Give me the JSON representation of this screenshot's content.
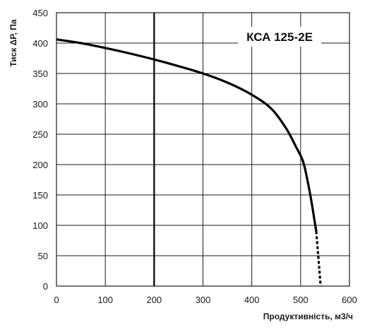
{
  "chart_data": {
    "type": "line",
    "model_label": "КСА 125-2Е",
    "xlabel": "Продуктивність, м3/ч",
    "ylabel": "Тиск ΔР, Па",
    "xlim": [
      0,
      600
    ],
    "ylim": [
      0,
      450
    ],
    "xticks": [
      0,
      100,
      200,
      300,
      400,
      500,
      600
    ],
    "yticks": [
      0,
      50,
      100,
      150,
      200,
      250,
      300,
      350,
      400,
      450
    ],
    "grid": true,
    "reference_line_x": 200,
    "series": [
      {
        "style": "solid",
        "x": [
          0,
          50,
          100,
          150,
          200,
          250,
          300,
          350,
          400,
          440,
          470,
          490,
          505,
          515,
          522,
          528,
          532
        ],
        "y": [
          406,
          400,
          392,
          383,
          373,
          362,
          350,
          335,
          315,
          292,
          260,
          230,
          205,
          170,
          140,
          110,
          90
        ]
      },
      {
        "style": "dotted",
        "x": [
          532,
          535,
          538,
          541
        ],
        "y": [
          90,
          60,
          30,
          0
        ]
      }
    ],
    "colors": {
      "curve": "#000000",
      "grid": "#1a1a1a",
      "reference": "#000000"
    }
  }
}
